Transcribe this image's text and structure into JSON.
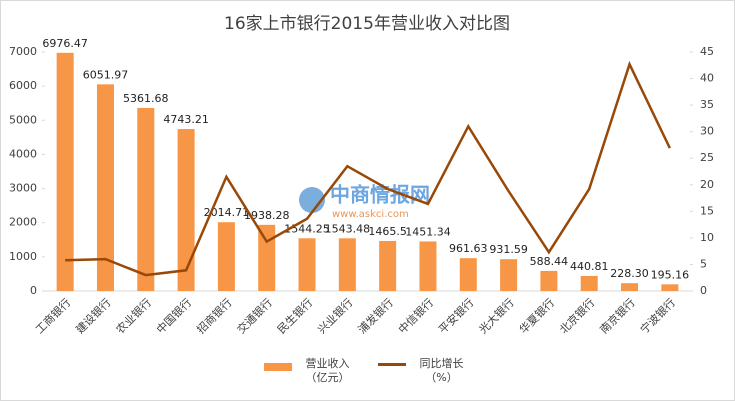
{
  "chart_data": {
    "type": "bar-line",
    "title": "16家上市银行2015年营业收入对比图",
    "watermark": {
      "name": "中商情报网",
      "url": "www.askci.com"
    },
    "categories": [
      "工商银行",
      "建设银行",
      "农业银行",
      "中国银行",
      "招商银行",
      "交通银行",
      "民生银行",
      "兴业银行",
      "浦发银行",
      "中信银行",
      "平安银行",
      "光大银行",
      "华夏银行",
      "北京银行",
      "南京银行",
      "宁波银行"
    ],
    "series": [
      {
        "name": "营业收入（亿元）",
        "type": "bar",
        "color": "#f79646",
        "values": [
          6976.47,
          6051.97,
          5361.68,
          4743.21,
          2014.71,
          1938.28,
          1544.25,
          1543.48,
          1465.5,
          1451.34,
          961.63,
          931.59,
          588.44,
          440.81,
          228.3,
          195.16
        ],
        "value_labels": [
          "6976.47",
          "6051.97",
          "5361.68",
          "4743.21",
          "2014.71",
          "1938.28",
          "1544.25",
          "1543.48",
          "1465.5",
          "1451.34",
          "961.63",
          "931.59",
          "588.44",
          "440.81",
          "228.30",
          "195.16"
        ]
      },
      {
        "name": "同比增长（%）",
        "type": "line",
        "axis": "y2",
        "color": "#984807",
        "values": [
          5.8,
          6.0,
          3.0,
          3.9,
          21.5,
          9.3,
          13.6,
          23.5,
          19.2,
          16.4,
          31.0,
          18.8,
          7.3,
          19.2,
          42.7,
          26.9
        ]
      }
    ],
    "ylim": [
      0,
      7000
    ],
    "yticks": [
      0,
      1000,
      2000,
      3000,
      4000,
      5000,
      6000,
      7000
    ],
    "y2lim": [
      0,
      45
    ],
    "y2ticks": [
      0,
      5,
      10,
      15,
      20,
      25,
      30,
      35,
      40,
      45
    ],
    "legend": "bottom"
  }
}
